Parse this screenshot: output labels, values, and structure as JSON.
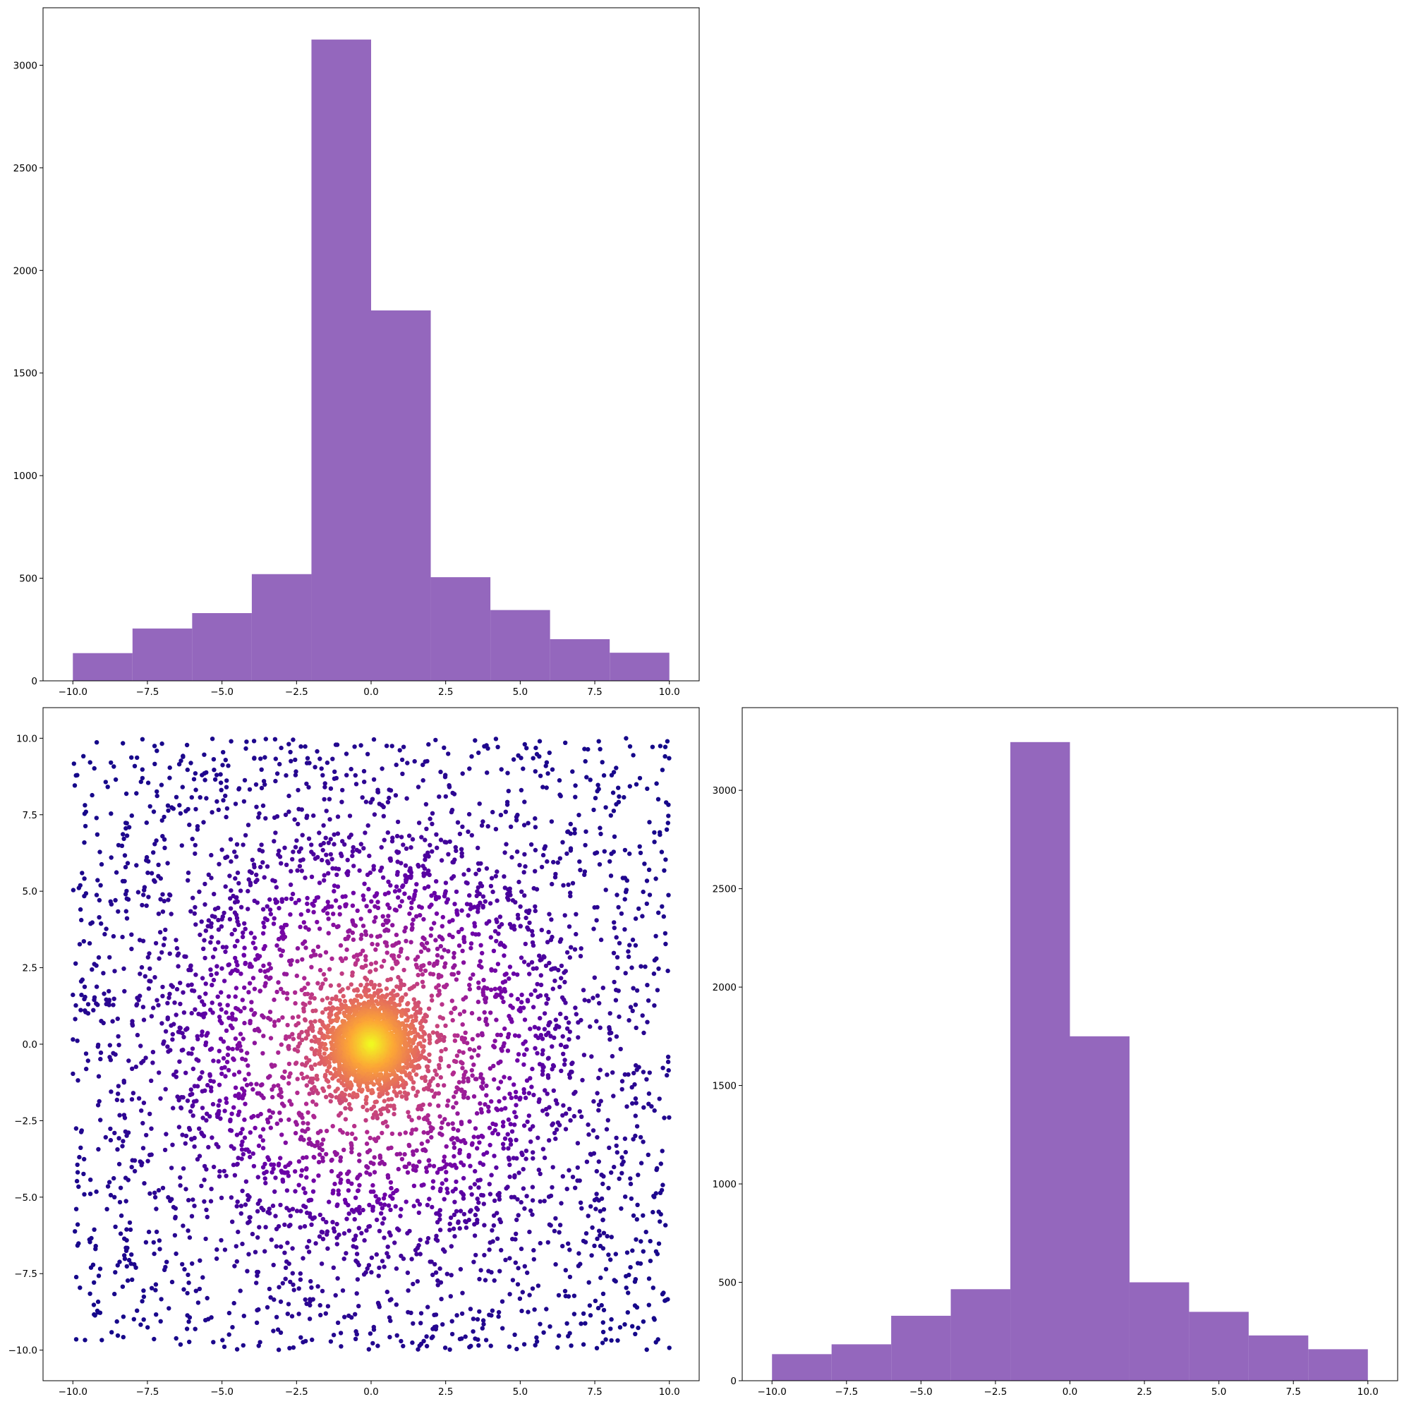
{
  "bar_color": "#9467bd",
  "scatter_colormap": [
    "#0d0887",
    "#6a00a8",
    "#b12a90",
    "#e16462",
    "#fca636",
    "#f0f921"
  ],
  "chart_data": [
    {
      "type": "bar",
      "panel": "top-left",
      "bin_edges": [
        -10,
        -8,
        -6,
        -4,
        -2,
        0,
        2,
        4,
        6,
        8,
        10
      ],
      "values": [
        135,
        255,
        330,
        520,
        3125,
        1805,
        505,
        345,
        203,
        137
      ],
      "xlim": [
        -11.0,
        11.0
      ],
      "ylim": [
        0,
        3280
      ],
      "xticks": [
        -10.0,
        -7.5,
        -5.0,
        -2.5,
        0.0,
        2.5,
        5.0,
        7.5,
        10.0
      ],
      "xtick_labels": [
        "−10.0",
        "−7.5",
        "−5.0",
        "−2.5",
        "0.0",
        "2.5",
        "5.0",
        "7.5",
        "10.0"
      ],
      "yticks": [
        0,
        500,
        1000,
        1500,
        2000,
        2500,
        3000
      ],
      "ytick_labels": [
        "0",
        "500",
        "1000",
        "1500",
        "2000",
        "2500",
        "3000"
      ],
      "title": "",
      "xlabel": "",
      "ylabel": "",
      "grid": false
    },
    {
      "type": "scatter",
      "panel": "bottom-left",
      "n_points": 6000,
      "distribution": "mixture of uniform background over [-10, 10] x [-10, 10] and a dense cluster centred at (0, 0) of radius about 2",
      "color_encoding": "point density, plasma colormap (dark purple = sparse, yellow = dense)",
      "xlim": [
        -11.0,
        11.0
      ],
      "ylim": [
        -11.0,
        11.0
      ],
      "xticks": [
        -10.0,
        -7.5,
        -5.0,
        -2.5,
        0.0,
        2.5,
        5.0,
        7.5,
        10.0
      ],
      "xtick_labels": [
        "−10.0",
        "−7.5",
        "−5.0",
        "−2.5",
        "0.0",
        "2.5",
        "5.0",
        "7.5",
        "10.0"
      ],
      "yticks": [
        -10.0,
        -7.5,
        -5.0,
        -2.5,
        0.0,
        2.5,
        5.0,
        7.5,
        10.0
      ],
      "ytick_labels": [
        "−10.0",
        "−7.5",
        "−5.0",
        "−2.5",
        "0.0",
        "2.5",
        "5.0",
        "7.5",
        "10.0"
      ],
      "title": "",
      "xlabel": "",
      "ylabel": "",
      "grid": false
    },
    {
      "type": "bar",
      "panel": "bottom-right",
      "bin_edges": [
        -10,
        -8,
        -6,
        -4,
        -2,
        0,
        2,
        4,
        6,
        8,
        10
      ],
      "values": [
        135,
        185,
        330,
        465,
        3245,
        1750,
        500,
        350,
        230,
        160
      ],
      "xlim": [
        -11.0,
        11.0
      ],
      "ylim": [
        0,
        3420
      ],
      "xticks": [
        -10.0,
        -7.5,
        -5.0,
        -2.5,
        0.0,
        2.5,
        5.0,
        7.5,
        10.0
      ],
      "xtick_labels": [
        "−10.0",
        "−7.5",
        "−5.0",
        "−2.5",
        "0.0",
        "2.5",
        "5.0",
        "7.5",
        "10.0"
      ],
      "yticks": [
        0,
        500,
        1000,
        1500,
        2000,
        2500,
        3000
      ],
      "ytick_labels": [
        "0",
        "500",
        "1000",
        "1500",
        "2000",
        "2500",
        "3000"
      ],
      "title": "",
      "xlabel": "",
      "ylabel": "",
      "grid": false
    }
  ]
}
